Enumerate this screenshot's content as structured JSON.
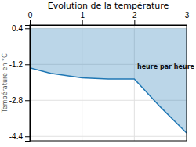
{
  "chart_data": {
    "type": "area",
    "title": "Evolution de la température",
    "y_label": "Température en °C",
    "annotations": [
      {
        "text": "heure par heure",
        "x": 2.1,
        "y": -1.2
      }
    ],
    "x": [
      0,
      0.4,
      1.0,
      1.5,
      2.0,
      2.5,
      3.0
    ],
    "values": [
      -1.35,
      -1.6,
      -1.8,
      -1.85,
      -1.85,
      -3.1,
      -4.25
    ],
    "fill_top": 0.4,
    "xlim": [
      0,
      3
    ],
    "ylim": [
      -4.6,
      0.55
    ],
    "xticks": [
      0,
      1,
      2,
      3
    ],
    "yticks": [
      0.4,
      -1.2,
      -2.8,
      -4.4
    ],
    "grid": true
  }
}
